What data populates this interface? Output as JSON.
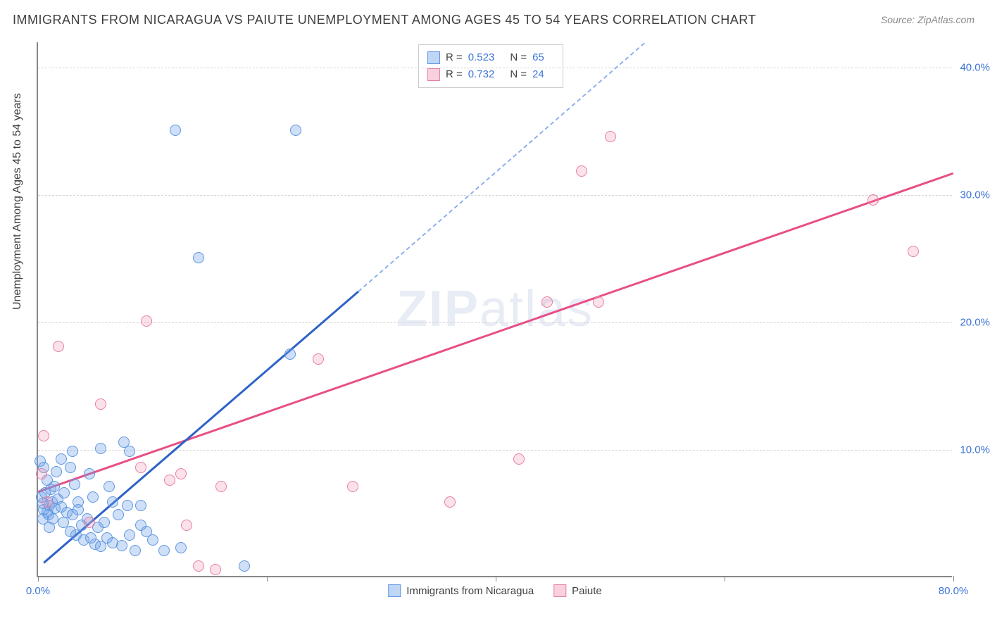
{
  "title": "IMMIGRANTS FROM NICARAGUA VS PAIUTE UNEMPLOYMENT AMONG AGES 45 TO 54 YEARS CORRELATION CHART",
  "source": "Source: ZipAtlas.com",
  "ylabel": "Unemployment Among Ages 45 to 54 years",
  "watermark_bold": "ZIP",
  "watermark_light": "atlas",
  "chart": {
    "type": "scatter",
    "xlim": [
      0,
      80
    ],
    "ylim": [
      0,
      42
    ],
    "x_ticks": [
      0,
      20,
      40,
      60,
      80
    ],
    "x_tick_labels": [
      "0.0%",
      "",
      "",
      "",
      "80.0%"
    ],
    "y_ticks": [
      10,
      20,
      30,
      40
    ],
    "y_tick_labels": [
      "10.0%",
      "20.0%",
      "30.0%",
      "40.0%"
    ],
    "background_color": "#ffffff",
    "grid_color": "#d5d5d5",
    "axis_color": "#888888",
    "tick_label_color": "#3d74d6",
    "point_radius": 8,
    "series": [
      {
        "name": "Immigrants from Nicaragua",
        "color_fill": "rgba(114,164,232,0.35)",
        "color_stroke": "#5f97e0",
        "trend_color": "#2e62c8",
        "trend_dash_color": "#8db1ea",
        "R": "0.523",
        "N": "65",
        "trend_solid": {
          "x1": 0.5,
          "y1": 1.2,
          "x2": 28,
          "y2": 22.5
        },
        "trend_dash": {
          "x1": 28,
          "y1": 22.5,
          "x2": 53,
          "y2": 42
        },
        "points": [
          [
            0.5,
            5.2
          ],
          [
            0.8,
            5.0
          ],
          [
            1.0,
            5.5
          ],
          [
            1.2,
            5.8
          ],
          [
            1.5,
            5.3
          ],
          [
            1.7,
            6.0
          ],
          [
            0.4,
            5.7
          ],
          [
            0.9,
            4.8
          ],
          [
            1.3,
            4.5
          ],
          [
            2.0,
            5.4
          ],
          [
            2.2,
            4.2
          ],
          [
            2.5,
            5.0
          ],
          [
            2.8,
            3.5
          ],
          [
            3.0,
            4.8
          ],
          [
            3.3,
            3.2
          ],
          [
            3.5,
            5.2
          ],
          [
            3.8,
            4.0
          ],
          [
            4.0,
            2.8
          ],
          [
            4.3,
            4.5
          ],
          [
            4.6,
            3.0
          ],
          [
            5.0,
            2.5
          ],
          [
            5.2,
            3.8
          ],
          [
            5.5,
            2.3
          ],
          [
            5.8,
            4.2
          ],
          [
            6.0,
            3.0
          ],
          [
            6.5,
            2.6
          ],
          [
            7.0,
            4.8
          ],
          [
            7.3,
            2.4
          ],
          [
            7.8,
            5.5
          ],
          [
            8.0,
            3.2
          ],
          [
            8.5,
            2.0
          ],
          [
            9.0,
            4.0
          ],
          [
            9.5,
            3.5
          ],
          [
            10.0,
            2.8
          ],
          [
            11.0,
            2.0
          ],
          [
            0.3,
            6.2
          ],
          [
            0.6,
            6.5
          ],
          [
            1.1,
            6.8
          ],
          [
            1.4,
            7.0
          ],
          [
            0.2,
            9.0
          ],
          [
            0.5,
            8.5
          ],
          [
            2.3,
            6.5
          ],
          [
            3.2,
            7.2
          ],
          [
            4.5,
            8.0
          ],
          [
            5.5,
            10.0
          ],
          [
            7.5,
            10.5
          ],
          [
            8.0,
            9.8
          ],
          [
            12.0,
            35.0
          ],
          [
            22.5,
            35.0
          ],
          [
            14.0,
            25.0
          ],
          [
            22.0,
            17.4
          ],
          [
            12.5,
            2.2
          ],
          [
            18.0,
            0.8
          ],
          [
            6.5,
            5.8
          ],
          [
            2.0,
            9.2
          ],
          [
            3.0,
            9.8
          ],
          [
            0.8,
            7.5
          ],
          [
            1.6,
            8.2
          ],
          [
            2.8,
            8.5
          ],
          [
            0.4,
            4.5
          ],
          [
            1.0,
            3.8
          ],
          [
            3.5,
            5.8
          ],
          [
            4.8,
            6.2
          ],
          [
            6.2,
            7.0
          ],
          [
            9.0,
            5.5
          ]
        ]
      },
      {
        "name": "Paiute",
        "color_fill": "rgba(240,140,170,0.25)",
        "color_stroke": "#e87fa3",
        "trend_color": "#e84f86",
        "R": "0.732",
        "N": "24",
        "trend_solid": {
          "x1": 0,
          "y1": 6.8,
          "x2": 80,
          "y2": 31.8
        },
        "points": [
          [
            0.3,
            8.0
          ],
          [
            0.5,
            11.0
          ],
          [
            1.8,
            18.0
          ],
          [
            5.5,
            13.5
          ],
          [
            9.5,
            20.0
          ],
          [
            0.8,
            5.8
          ],
          [
            4.5,
            4.2
          ],
          [
            9.0,
            8.5
          ],
          [
            12.5,
            8.0
          ],
          [
            13.0,
            4.0
          ],
          [
            14.0,
            0.8
          ],
          [
            15.5,
            0.5
          ],
          [
            16.0,
            7.0
          ],
          [
            24.5,
            17.0
          ],
          [
            27.5,
            7.0
          ],
          [
            36.0,
            5.8
          ],
          [
            42.0,
            9.2
          ],
          [
            44.5,
            21.5
          ],
          [
            49.0,
            21.5
          ],
          [
            50.0,
            34.5
          ],
          [
            47.5,
            31.8
          ],
          [
            76.5,
            25.5
          ],
          [
            73.0,
            29.5
          ],
          [
            11.5,
            7.5
          ]
        ]
      }
    ]
  },
  "legend_bottom": [
    {
      "swatch": "blue",
      "label": "Immigrants from Nicaragua"
    },
    {
      "swatch": "pink",
      "label": "Paiute"
    }
  ]
}
